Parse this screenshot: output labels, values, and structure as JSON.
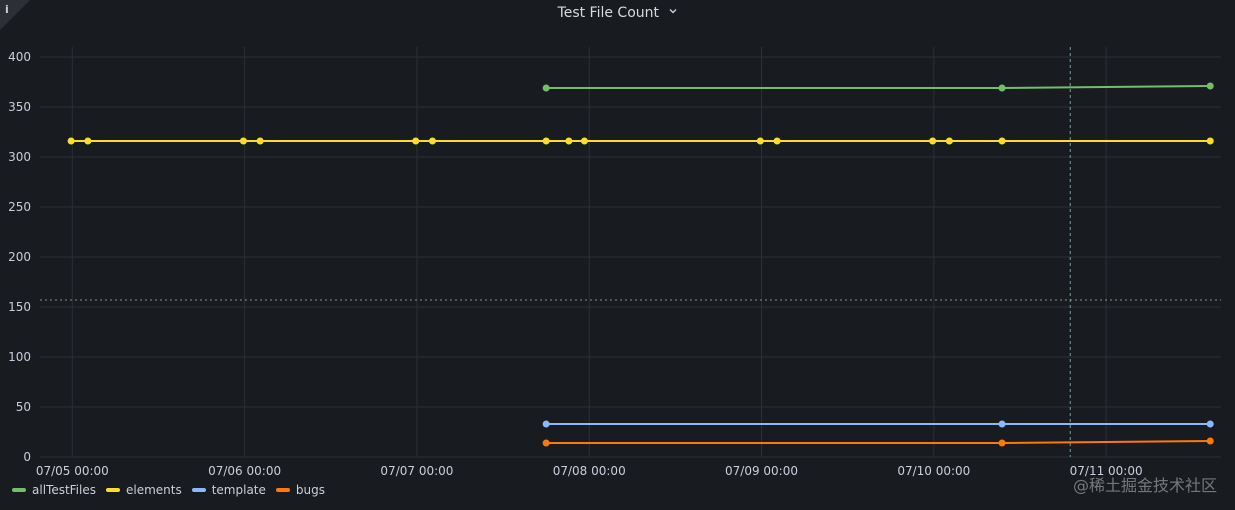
{
  "panel": {
    "title": "Test File Count",
    "info_icon": "info-icon",
    "title_dropdown_icon": "chevron-down-icon",
    "watermark": "@稀土掘金技术社区"
  },
  "colors": {
    "background": "#181b1f",
    "grid": "#2c3036",
    "allTestFiles": "#73bf69",
    "elements": "#fade2a",
    "template": "#8ab8ff",
    "bugs": "#ff780a"
  },
  "chart_data": {
    "type": "line",
    "ylim": [
      0,
      400
    ],
    "y_ticks": [
      "0",
      "50",
      "100",
      "150",
      "200",
      "250",
      "300",
      "350",
      "400"
    ],
    "y_tick_values": [
      0,
      50,
      100,
      150,
      200,
      250,
      300,
      350,
      400
    ],
    "x_range": [
      "2023-07-04T19:30",
      "2023-07-11T16:00"
    ],
    "x_ticks": [
      "07/05 00:00",
      "07/06 00:00",
      "07/07 00:00",
      "07/08 00:00",
      "07/09 00:00",
      "07/10 00:00",
      "07/11 00:00"
    ],
    "x_tick_values": [
      "2023-07-05T00:00",
      "2023-07-06T00:00",
      "2023-07-07T00:00",
      "2023-07-08T00:00",
      "2023-07-09T00:00",
      "2023-07-10T00:00",
      "2023-07-11T00:00"
    ],
    "threshold": 157,
    "crosshair_x": "2023-07-10T19:00",
    "grid": true,
    "legend_position": "bottom-left",
    "series": [
      {
        "name": "allTestFiles",
        "color": "#73bf69",
        "points": [
          {
            "x": "2023-07-07T18:00",
            "y": 369
          },
          {
            "x": "2023-07-10T09:30",
            "y": 369
          },
          {
            "x": "2023-07-11T14:30",
            "y": 371
          }
        ]
      },
      {
        "name": "elements",
        "color": "#fade2a",
        "points": [
          {
            "x": "2023-07-04T23:50",
            "y": 316
          },
          {
            "x": "2023-07-05T02:10",
            "y": 316
          },
          {
            "x": "2023-07-05T23:50",
            "y": 316
          },
          {
            "x": "2023-07-06T02:10",
            "y": 316
          },
          {
            "x": "2023-07-06T23:50",
            "y": 316
          },
          {
            "x": "2023-07-07T02:10",
            "y": 316
          },
          {
            "x": "2023-07-07T18:00",
            "y": 316
          },
          {
            "x": "2023-07-07T21:10",
            "y": 316
          },
          {
            "x": "2023-07-07T23:20",
            "y": 316
          },
          {
            "x": "2023-07-08T23:50",
            "y": 316
          },
          {
            "x": "2023-07-09T02:10",
            "y": 316
          },
          {
            "x": "2023-07-09T23:50",
            "y": 316
          },
          {
            "x": "2023-07-10T02:10",
            "y": 316
          },
          {
            "x": "2023-07-10T09:30",
            "y": 316
          },
          {
            "x": "2023-07-11T14:30",
            "y": 316
          }
        ]
      },
      {
        "name": "template",
        "color": "#8ab8ff",
        "points": [
          {
            "x": "2023-07-07T18:00",
            "y": 33
          },
          {
            "x": "2023-07-10T09:30",
            "y": 33
          },
          {
            "x": "2023-07-11T14:30",
            "y": 33
          }
        ]
      },
      {
        "name": "bugs",
        "color": "#ff780a",
        "points": [
          {
            "x": "2023-07-07T18:00",
            "y": 14
          },
          {
            "x": "2023-07-10T09:30",
            "y": 14
          },
          {
            "x": "2023-07-11T14:30",
            "y": 16
          }
        ]
      }
    ]
  }
}
